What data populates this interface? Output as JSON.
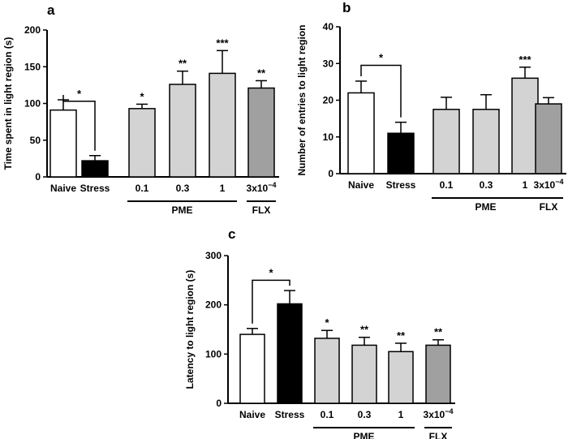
{
  "chart_data": [
    {
      "panel": "a",
      "type": "bar",
      "ylabel": "Time spent in light region (s)",
      "ylim": [
        0,
        200
      ],
      "yticks": [
        0,
        50,
        100,
        150,
        200
      ],
      "categories": [
        "Naive",
        "Stress",
        "0.1",
        "0.3",
        "1",
        "3x10"
      ],
      "exponent_label": "−4",
      "values": [
        91,
        22,
        93,
        126,
        141,
        121
      ],
      "errors": [
        14,
        7,
        6,
        18,
        31,
        10
      ],
      "colors": [
        "#ffffff",
        "#000000",
        "#d3d3d3",
        "#d3d3d3",
        "#d3d3d3",
        "#a0a0a0"
      ],
      "significance": [
        "",
        "",
        "*",
        "**",
        "***",
        "**"
      ],
      "comparison": {
        "from": 0,
        "to": 1,
        "y": 103,
        "label": "*"
      },
      "groups": [
        {
          "label": "PME",
          "from": 2,
          "to": 4
        },
        {
          "label": "FLX",
          "from": 5,
          "to": 5
        }
      ]
    },
    {
      "panel": "b",
      "type": "bar",
      "ylabel": "Number of entries to light region",
      "ylim": [
        0,
        40
      ],
      "yticks": [
        0,
        10,
        20,
        30,
        40
      ],
      "categories": [
        "Naive",
        "Stress",
        "0.1",
        "0.3",
        "1",
        "3x10"
      ],
      "exponent_label": "−4",
      "values": [
        22,
        11,
        17.5,
        17.5,
        26,
        19
      ],
      "errors": [
        3.2,
        3,
        3.3,
        4,
        3,
        1.7
      ],
      "colors": [
        "#ffffff",
        "#000000",
        "#d3d3d3",
        "#d3d3d3",
        "#d3d3d3",
        "#a0a0a0"
      ],
      "significance": [
        "",
        "",
        "",
        "",
        "***",
        ""
      ],
      "comparison": {
        "from": 0,
        "to": 1,
        "y": 29.5,
        "label": "*"
      },
      "groups": [
        {
          "label": "PME",
          "from": 2,
          "to": 4
        },
        {
          "label": "FLX",
          "from": 5,
          "to": 5
        }
      ]
    },
    {
      "panel": "c",
      "type": "bar",
      "ylabel": "Latency to light region (s)",
      "ylim": [
        0,
        300
      ],
      "yticks": [
        0,
        100,
        200,
        300
      ],
      "categories": [
        "Naive",
        "Stress",
        "0.1",
        "0.3",
        "1",
        "3x10"
      ],
      "exponent_label": "−4",
      "values": [
        140,
        202,
        132,
        118,
        105,
        118
      ],
      "errors": [
        12,
        27,
        16,
        16,
        17,
        11
      ],
      "colors": [
        "#ffffff",
        "#000000",
        "#d3d3d3",
        "#d3d3d3",
        "#d3d3d3",
        "#a0a0a0"
      ],
      "significance": [
        "",
        "",
        "*",
        "**",
        "**",
        "**"
      ],
      "comparison": {
        "from": 0,
        "to": 1,
        "y": 250,
        "label": "*"
      },
      "groups": [
        {
          "label": "PME",
          "from": 2,
          "to": 4
        },
        {
          "label": "FLX",
          "from": 5,
          "to": 5
        }
      ]
    }
  ]
}
